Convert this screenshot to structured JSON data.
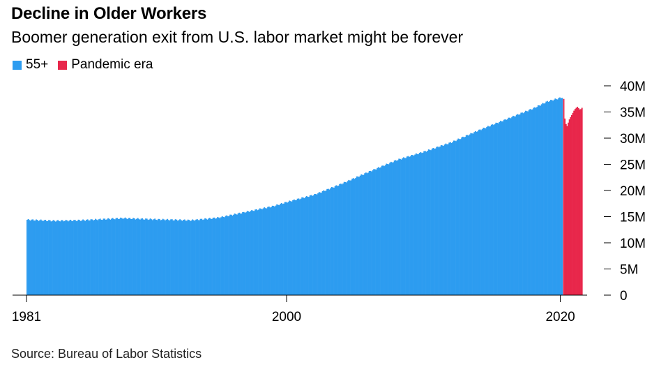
{
  "title": "Decline in Older Workers",
  "subtitle": "Boomer generation exit from U.S. labor market might be forever",
  "legend": [
    {
      "label": "55+",
      "color": "#2d9cf0"
    },
    {
      "label": "Pandemic era",
      "color": "#e8274b"
    }
  ],
  "source": "Source: Bureau of Labor Statistics",
  "chart_data": {
    "type": "bar",
    "x_range": [
      1981,
      2021.6
    ],
    "ylim": [
      0,
      40
    ],
    "y_unit": "M",
    "y_ticks": [
      "0",
      "5M",
      "10M",
      "15M",
      "20M",
      "25M",
      "30M",
      "35M",
      "40M"
    ],
    "x_ticks": [
      "1981",
      "2000",
      "2020"
    ],
    "grid": false,
    "legend_position": "top-left",
    "series": [
      {
        "name": "55+",
        "color": "#2d9cf0",
        "anchors": [
          [
            1981.0,
            14.4
          ],
          [
            1983.0,
            14.2
          ],
          [
            1985.0,
            14.3
          ],
          [
            1988.0,
            14.7
          ],
          [
            1990.0,
            14.5
          ],
          [
            1993.0,
            14.3
          ],
          [
            1995.0,
            14.8
          ],
          [
            1997.0,
            15.9
          ],
          [
            1999.0,
            17.0
          ],
          [
            2000.0,
            17.8
          ],
          [
            2002.0,
            19.2
          ],
          [
            2004.0,
            21.3
          ],
          [
            2006.0,
            23.6
          ],
          [
            2008.0,
            25.8
          ],
          [
            2010.0,
            27.4
          ],
          [
            2012.0,
            29.2
          ],
          [
            2014.0,
            31.5
          ],
          [
            2016.0,
            33.6
          ],
          [
            2018.0,
            35.7
          ],
          [
            2019.0,
            37.0
          ],
          [
            2020.1,
            37.8
          ]
        ]
      },
      {
        "name": "Pandemic era",
        "color": "#e8274b",
        "anchors": [
          [
            2020.2,
            37.5
          ],
          [
            2020.3,
            33.0
          ],
          [
            2020.45,
            32.3
          ],
          [
            2020.6,
            33.5
          ],
          [
            2020.8,
            34.5
          ],
          [
            2021.0,
            35.5
          ],
          [
            2021.2,
            36.0
          ],
          [
            2021.4,
            35.4
          ],
          [
            2021.6,
            36.0
          ]
        ]
      }
    ]
  }
}
